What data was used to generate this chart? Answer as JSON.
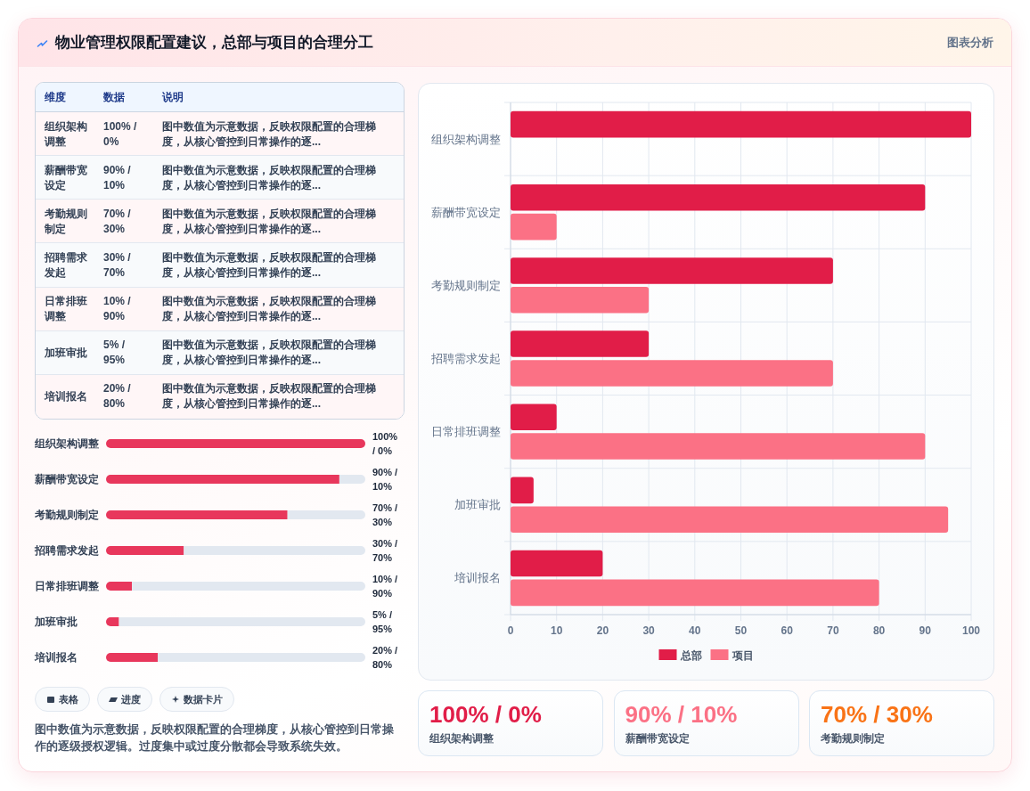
{
  "chart_data": [
    {
      "type": "other",
      "title": "物业管理权限配置建议，总部与项目的合理分工",
      "annotations": [
        "图表分析"
      ]
    },
    {
      "type": "other",
      "categories": [
        "组织架构调整",
        "薪酬带宽设定",
        "考勤规则制定",
        "招聘需求发起",
        "日常排班调整",
        "加班审批",
        "培训报名"
      ],
      "annotations": [
        "维度",
        "数据",
        "说明",
        "100% / 0%",
        "图中数值为示意数据，反映权限配置的合理梯度，从核心管控到日常操作的逐...",
        "90% / 10%",
        "图中数值为示意数据，反映权限配置的合理梯度，从核心管控到日常操作的逐...",
        "70% / 30%",
        "图中数值为示意数据，反映权限配置的合理梯度，从核心管控到日常操作的逐...",
        "30% / 70%",
        "图中数值为示意数据，反映权限配置的合理梯度，从核心管控到日常操作的逐...",
        "10% / 90%",
        "图中数值为示意数据，反映权限配置的合理梯度，从核心管控到日常操作的逐...",
        "5% / 95%",
        "图中数值为示意数据，反映权限配置的合理梯度，从核心管控到日常操作的逐...",
        "20% / 80%",
        "图中数值为示意数据，反映权限配置的合理梯度，从核心管控到日常操作的逐..."
      ]
    },
    {
      "type": "bar",
      "orientation": "horizontal",
      "categories": [
        "组织架构调整",
        "薪酬带宽设定",
        "考勤规则制定",
        "招聘需求发起",
        "日常排班调整",
        "加班审批",
        "培训报名"
      ],
      "series": [
        {
          "name": "总部",
          "color": "#e11d48",
          "values": [
            100,
            90,
            70,
            30,
            10,
            5,
            20
          ]
        },
        {
          "name": "项目",
          "color": "#fb7185",
          "values": [
            0,
            10,
            30,
            70,
            90,
            95,
            80
          ]
        }
      ],
      "xlim": [
        0,
        100
      ],
      "xticks": [
        0,
        10,
        20,
        30,
        40,
        50,
        60,
        70,
        80,
        90,
        100
      ],
      "grid": true,
      "legend": "bottom"
    },
    {
      "type": "bar",
      "orientation": "horizontal",
      "stacked": true,
      "categories": [
        "组织架构调整",
        "薪酬带宽设定",
        "考勤规则制定",
        "招聘需求发起",
        "日常排班调整",
        "加班审批",
        "培训报名"
      ],
      "series": [
        {
          "color": "#e8375c",
          "values": [
            100,
            90,
            70,
            30,
            10,
            5,
            20
          ],
          "value_labels": [
            "100% / 0%",
            null,
            null,
            null,
            null,
            null,
            null
          ]
        },
        {
          "color": "#e2e8f0",
          "values": [
            0,
            10,
            30,
            70,
            90,
            95,
            80
          ],
          "value_labels": [
            null,
            "90% / 10%",
            "70% / 30%",
            "30% / 70%",
            "10% / 90%",
            "5% / 95%",
            "20% / 80%"
          ]
        }
      ]
    },
    {
      "type": "other",
      "categories": [
        "组织架构调整",
        "薪酬带宽设定",
        "考勤规则制定"
      ],
      "annotations": [
        "100% / 0%",
        "90% / 10%",
        "70% / 30%"
      ]
    },
    {
      "type": "other",
      "annotations": [
        "表格",
        "进度",
        "数据卡片",
        "图中数值为示意数据，反映权限配置的合理梯度，从核心管控到日常操作的逐级授权逻辑。过度集中或过度分散都会导致系统失效。"
      ]
    }
  ]
}
